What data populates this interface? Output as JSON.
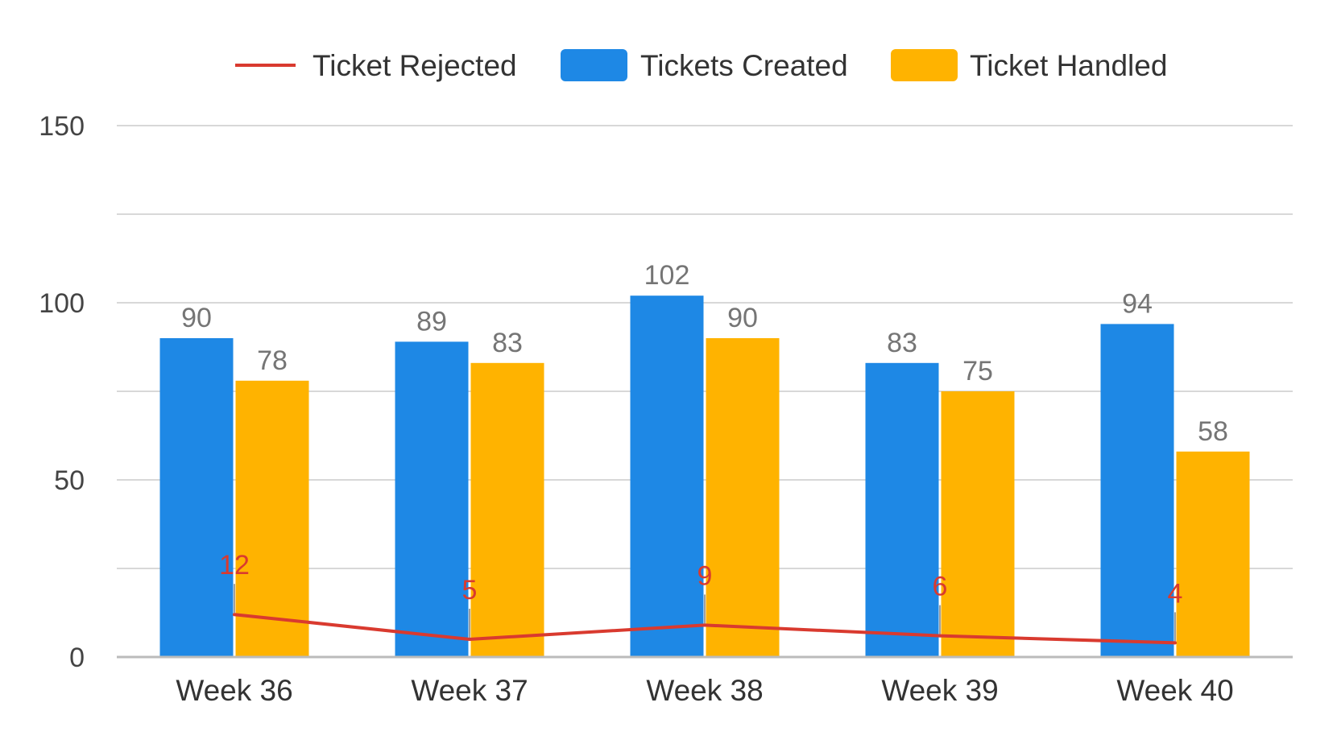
{
  "chart_data": {
    "type": "bar",
    "categories": [
      "Week 36",
      "Week 37",
      "Week 38",
      "Week 39",
      "Week 40"
    ],
    "series": [
      {
        "name": "Ticket Rejected",
        "type": "line",
        "color": "#d93a2f",
        "values": [
          12,
          5,
          9,
          6,
          4
        ]
      },
      {
        "name": "Tickets Created",
        "type": "bar",
        "color": "#1e88e5",
        "values": [
          90,
          89,
          102,
          83,
          94
        ]
      },
      {
        "name": "Ticket Handled",
        "type": "bar",
        "color": "#ffb300",
        "values": [
          78,
          83,
          90,
          75,
          58
        ]
      }
    ],
    "y_ticks": [
      "0",
      "50",
      "100",
      "150"
    ],
    "ylim": [
      0,
      150
    ],
    "grid": true,
    "legend_position": "top",
    "colors": {
      "gridline": "#cccccc",
      "axis": "#bbbbbb",
      "bar_label": "#757575",
      "line_label": "#d93a2f"
    }
  }
}
